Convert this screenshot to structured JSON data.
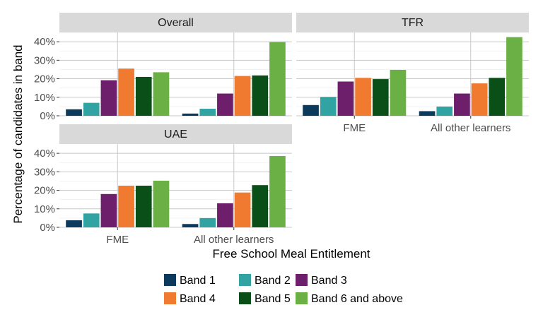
{
  "chart_data": {
    "type": "bar",
    "xlabel": "Free School Meal Entitlement",
    "ylabel": "Percentage of candidates in band",
    "ylim": [
      0,
      45
    ],
    "yticks": [
      "0%",
      "10%",
      "20%",
      "30%",
      "40%"
    ],
    "ytick_values": [
      0,
      10,
      20,
      30,
      40
    ],
    "categories": [
      "FME",
      "All other learners"
    ],
    "legend": {
      "position": "bottom",
      "items": [
        {
          "name": "Band 1",
          "color": "#0b3a5c"
        },
        {
          "name": "Band 2",
          "color": "#32a3a3"
        },
        {
          "name": "Band 3",
          "color": "#6e1f6b"
        },
        {
          "name": "Band 4",
          "color": "#f07a30"
        },
        {
          "name": "Band 5",
          "color": "#0a4f17"
        },
        {
          "name": "Band 6 and above",
          "color": "#6ab044"
        }
      ]
    },
    "panels": [
      {
        "title": "Overall",
        "show_xticks": false,
        "show_yticks": true,
        "series": [
          {
            "name": "Band 1",
            "values": [
              3.5,
              1.2
            ]
          },
          {
            "name": "Band 2",
            "values": [
              7.0,
              3.8
            ]
          },
          {
            "name": "Band 3",
            "values": [
              19.2,
              12.0
            ]
          },
          {
            "name": "Band 4",
            "values": [
              25.5,
              21.5
            ]
          },
          {
            "name": "Band 5",
            "values": [
              21.0,
              21.8
            ]
          },
          {
            "name": "Band 6 and above",
            "values": [
              23.5,
              39.8
            ]
          }
        ]
      },
      {
        "title": "TFR",
        "show_xticks": true,
        "show_yticks": false,
        "series": [
          {
            "name": "Band 1",
            "values": [
              5.8,
              2.5
            ]
          },
          {
            "name": "Band 2",
            "values": [
              10.2,
              5.0
            ]
          },
          {
            "name": "Band 3",
            "values": [
              18.5,
              12.0
            ]
          },
          {
            "name": "Band 4",
            "values": [
              20.5,
              17.5
            ]
          },
          {
            "name": "Band 5",
            "values": [
              19.8,
              20.5
            ]
          },
          {
            "name": "Band 6 and above",
            "values": [
              24.8,
              42.5
            ]
          }
        ]
      },
      {
        "title": "UAE",
        "show_xticks": true,
        "show_yticks": true,
        "series": [
          {
            "name": "Band 1",
            "values": [
              3.8,
              1.8
            ]
          },
          {
            "name": "Band 2",
            "values": [
              7.5,
              5.0
            ]
          },
          {
            "name": "Band 3",
            "values": [
              18.0,
              13.0
            ]
          },
          {
            "name": "Band 4",
            "values": [
              22.5,
              18.8
            ]
          },
          {
            "name": "Band 5",
            "values": [
              22.5,
              22.8
            ]
          },
          {
            "name": "Band 6 and above",
            "values": [
              25.2,
              38.5
            ]
          }
        ]
      }
    ]
  }
}
